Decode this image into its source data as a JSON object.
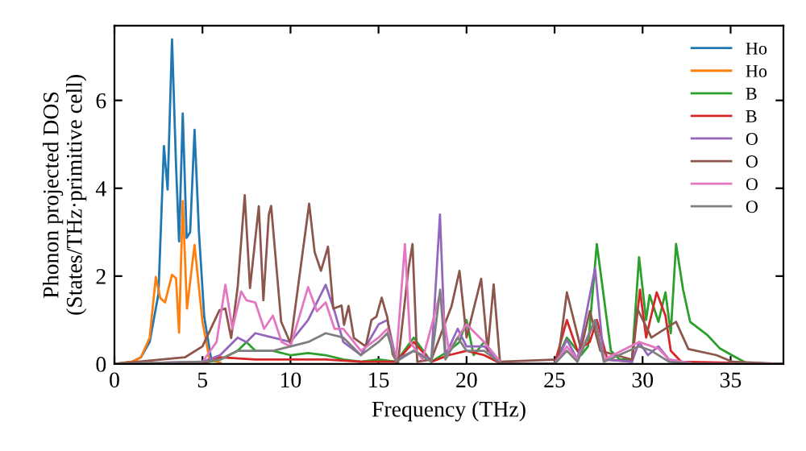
{
  "chart_data": {
    "type": "line",
    "xlabel": "Frequency (THz)",
    "ylabel": "Phonon projected DOS\n(States/THz·primitive cell)",
    "xlim": [
      0,
      38
    ],
    "ylim": [
      0,
      7.7
    ],
    "xticks": [
      0,
      5,
      10,
      15,
      20,
      25,
      30,
      35
    ],
    "yticks": [
      0,
      2,
      4,
      6
    ],
    "grid": false,
    "legend": "top right",
    "marker": "none",
    "line_style": "solid",
    "series": [
      {
        "name": "Ho",
        "color": "#1f77b4",
        "x": [
          0,
          1,
          1.5,
          2,
          2.5,
          2.81,
          3.02,
          3.27,
          3.5,
          3.67,
          3.88,
          4.1,
          4.3,
          4.55,
          4.8,
          5.1,
          5.5,
          6
        ],
        "values": [
          0,
          0.05,
          0.15,
          0.5,
          1.6,
          4.96,
          3.97,
          7.39,
          4.5,
          2.79,
          5.7,
          2.87,
          3.0,
          5.33,
          3.0,
          1.07,
          0.1,
          0.03
        ]
      },
      {
        "name": "Ho",
        "color": "#ff7f0e",
        "x": [
          0,
          1,
          1.5,
          2,
          2.35,
          2.6,
          2.87,
          3.27,
          3.5,
          3.67,
          3.88,
          4.12,
          4.55,
          5.0,
          5.4,
          6
        ],
        "values": [
          0,
          0.05,
          0.15,
          0.6,
          1.98,
          1.5,
          1.4,
          2.03,
          1.95,
          0.71,
          3.71,
          1.26,
          2.71,
          0.96,
          0.1,
          0.03
        ]
      },
      {
        "name": "B",
        "color": "#2ca02c",
        "x": [
          0,
          5,
          6,
          7,
          7.5,
          8,
          9,
          10,
          11,
          12,
          13,
          14,
          15,
          16,
          17,
          18,
          19,
          19.6,
          20,
          20.4,
          21,
          22,
          25,
          25.7,
          26.5,
          26.9,
          27.4,
          28.2,
          28.7,
          29.4,
          29.8,
          30.2,
          30.4,
          30.9,
          31.3,
          31.6,
          31.9,
          32.3,
          32.7,
          33.7,
          34.4,
          35.3,
          36,
          38
        ],
        "values": [
          0,
          0.02,
          0.1,
          0.3,
          0.5,
          0.3,
          0.3,
          0.2,
          0.25,
          0.2,
          0.1,
          0.05,
          0.1,
          0.05,
          0.6,
          0.05,
          0.3,
          0.5,
          1.0,
          0.2,
          0.5,
          0,
          0,
          0.6,
          0.2,
          0.4,
          2.73,
          0.3,
          0.1,
          0.1,
          2.43,
          1.0,
          1.57,
          0.96,
          1.63,
          0.7,
          2.73,
          1.69,
          0.96,
          0.65,
          0.35,
          0.15,
          0,
          0
        ]
      },
      {
        "name": "B",
        "color": "#d62728",
        "x": [
          0,
          5,
          6,
          8,
          10,
          12,
          14,
          16,
          17,
          18,
          19,
          20,
          21,
          22,
          25,
          25.7,
          26.3,
          27.0,
          27.4,
          28.0,
          29.4,
          29.85,
          30.2,
          30.8,
          31.3,
          31.6,
          32.2,
          38
        ],
        "values": [
          0,
          0.02,
          0.15,
          0.1,
          0.1,
          0.1,
          0.05,
          0.05,
          0.5,
          0.05,
          0.2,
          0.3,
          0.2,
          0,
          0,
          1.0,
          0.3,
          0.5,
          1.0,
          0.1,
          0.05,
          1.69,
          0.6,
          1.63,
          1.1,
          0.3,
          0.05,
          0
        ]
      },
      {
        "name": "O",
        "color": "#9467bd",
        "x": [
          0,
          5,
          6,
          7,
          7.5,
          8,
          9,
          10,
          11,
          12,
          12.5,
          13,
          14,
          15,
          15.5,
          16,
          17,
          18,
          18.49,
          18.8,
          19.5,
          20,
          21,
          22,
          25,
          25.7,
          26.3,
          27.3,
          27.8,
          29.4,
          29.8,
          30.3,
          30.9,
          31.5,
          33,
          38
        ],
        "values": [
          0,
          0.05,
          0.2,
          0.6,
          0.5,
          0.7,
          0.6,
          0.5,
          1.0,
          1.8,
          1.2,
          0.5,
          0.2,
          0.9,
          1.0,
          0.1,
          0.3,
          0.1,
          3.4,
          0.2,
          0.8,
          0.4,
          0.4,
          0,
          0,
          0.55,
          0.1,
          2.18,
          0.1,
          0.05,
          0.5,
          0.2,
          0.4,
          0.1,
          0,
          0
        ]
      },
      {
        "name": "O",
        "color": "#8c564b",
        "x": [
          0,
          4,
          5,
          5.96,
          6.3,
          6.63,
          7.0,
          7.4,
          7.7,
          8.2,
          8.46,
          8.77,
          8.9,
          9.47,
          10.0,
          11.06,
          11.37,
          11.73,
          12.13,
          12.43,
          12.9,
          13.04,
          13.3,
          13.6,
          14.27,
          14.6,
          14.88,
          15.18,
          15.5,
          15.8,
          16.1,
          16.7,
          16.93,
          17.2,
          18,
          19.15,
          19.6,
          20.0,
          20.83,
          21.2,
          21.54,
          21.9,
          25.2,
          25.7,
          26.5,
          27.0,
          27.6,
          29.4,
          29.7,
          30.5,
          31.9,
          32.6,
          34.2,
          35.1,
          38
        ],
        "values": [
          0,
          0.15,
          0.4,
          1.22,
          1.26,
          0.59,
          1.76,
          3.84,
          1.73,
          3.59,
          1.45,
          3.4,
          3.6,
          0.96,
          0.47,
          3.65,
          2.55,
          2.12,
          2.67,
          1.26,
          1.33,
          0.89,
          1.32,
          0.59,
          0.4,
          1.0,
          1.08,
          1.51,
          1.06,
          0.22,
          0,
          2.16,
          2.73,
          0.05,
          0.1,
          1.32,
          2.12,
          0.6,
          1.94,
          0.3,
          1.81,
          0.05,
          0.1,
          1.63,
          0.34,
          1.2,
          0.3,
          0.1,
          1.26,
          0.6,
          0.96,
          0.34,
          0.2,
          0.05,
          0
        ]
      },
      {
        "name": "O",
        "color": "#e377c2",
        "x": [
          0,
          5,
          5.8,
          6.3,
          6.7,
          7.2,
          7.5,
          8.0,
          8.5,
          9.0,
          9.5,
          10,
          11,
          11.5,
          12,
          12.5,
          13,
          14,
          15,
          15.5,
          16,
          16.5,
          16.8,
          17.5,
          18.5,
          19,
          20,
          21,
          22,
          25,
          25.7,
          26.3,
          27.3,
          27.8,
          29.8,
          30.9,
          31.5,
          33,
          38
        ],
        "values": [
          0,
          0.05,
          0.5,
          1.8,
          0.8,
          1.65,
          1.45,
          1.4,
          0.8,
          1.1,
          0.5,
          0.4,
          1.75,
          1.2,
          1.4,
          0.8,
          0.8,
          0.3,
          0.6,
          0.8,
          0.1,
          2.73,
          0.5,
          0.1,
          1.6,
          0.3,
          0.9,
          0.5,
          0,
          0,
          0.4,
          0.1,
          1.0,
          0.1,
          0.5,
          0.35,
          0.1,
          0,
          0
        ]
      },
      {
        "name": "O",
        "color": "#7f7f7f",
        "x": [
          0,
          5,
          6,
          7,
          8,
          9,
          10,
          11,
          12,
          13,
          14,
          15,
          15.5,
          16,
          17,
          18,
          18.5,
          18.8,
          19.5,
          20,
          21,
          22,
          25,
          25.7,
          26.3,
          27.3,
          27.8,
          29.8,
          30.5,
          31.5,
          33,
          38
        ],
        "values": [
          0,
          0.05,
          0.1,
          0.3,
          0.3,
          0.3,
          0.4,
          0.5,
          0.7,
          0.6,
          0.2,
          0.5,
          0.7,
          0.05,
          0.3,
          0.05,
          1.69,
          0.1,
          0.6,
          0.3,
          0.3,
          0,
          0,
          0.3,
          0.05,
          1.0,
          0.05,
          0.4,
          0.3,
          0.05,
          0,
          0
        ]
      }
    ]
  }
}
